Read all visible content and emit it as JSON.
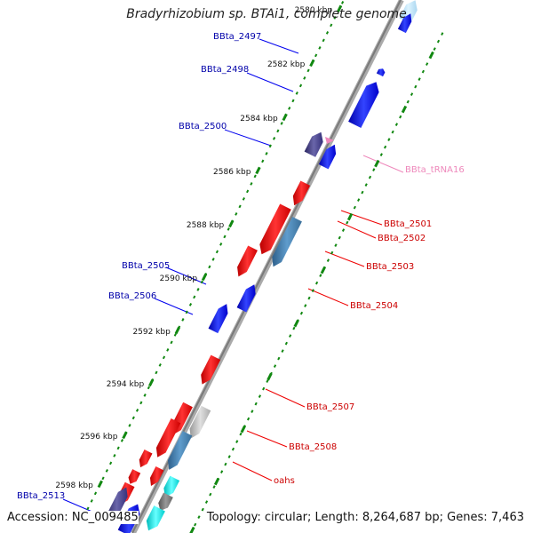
{
  "title": "Bradyrhizobium sp. BTAi1, complete genome",
  "footer": {
    "accession": "Accession: NC_009485",
    "topology": "Topology: circular; Length: 8,264,687 bp; Genes: 7,463"
  },
  "colors": {
    "plus_strand": "#0000ee",
    "minus_strand": "#ee0000",
    "trna": "#ee88bb",
    "backbone": "#888888",
    "tick": "#118811",
    "label_plus": "#0000aa",
    "label_minus": "#cc0000",
    "label_trna": "#ee88bb"
  },
  "ticks": [
    {
      "label": "2580 kbp"
    },
    {
      "label": "2582 kbp"
    },
    {
      "label": "2584 kbp"
    },
    {
      "label": "2586 kbp"
    },
    {
      "label": "2588 kbp"
    },
    {
      "label": "2590 kbp"
    },
    {
      "label": "2592 kbp"
    },
    {
      "label": "2594 kbp"
    },
    {
      "label": "2596 kbp"
    },
    {
      "label": "2598 kbp"
    }
  ],
  "labels": [
    {
      "text": "BBta_2497",
      "kind": "plus"
    },
    {
      "text": "BBta_2498",
      "kind": "plus"
    },
    {
      "text": "BBta_2500",
      "kind": "plus"
    },
    {
      "text": "BBta_tRNA16",
      "kind": "trna"
    },
    {
      "text": "BBta_2501",
      "kind": "minus"
    },
    {
      "text": "BBta_2502",
      "kind": "minus"
    },
    {
      "text": "BBta_2503",
      "kind": "minus"
    },
    {
      "text": "BBta_2504",
      "kind": "minus"
    },
    {
      "text": "BBta_2505",
      "kind": "plus"
    },
    {
      "text": "BBta_2506",
      "kind": "plus"
    },
    {
      "text": "BBta_2507",
      "kind": "minus"
    },
    {
      "text": "BBta_2508",
      "kind": "minus"
    },
    {
      "text": "oahs",
      "kind": "minus"
    },
    {
      "text": "BBta_2513",
      "kind": "plus"
    }
  ]
}
